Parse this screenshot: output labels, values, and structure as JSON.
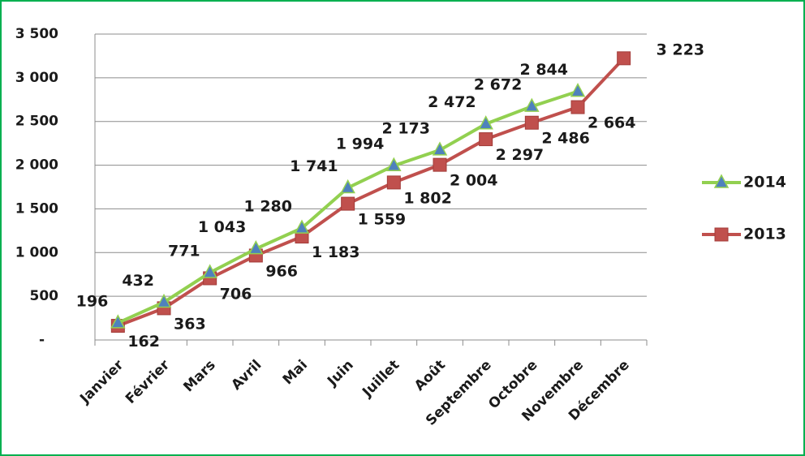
{
  "chart_data": {
    "type": "line",
    "categories": [
      "Janvier",
      "Février",
      "Mars",
      "Avril",
      "Mai",
      "Juin",
      "Juillet",
      "Août",
      "Septembre",
      "Octobre",
      "Novembre",
      "Décembre"
    ],
    "series": [
      {
        "name": "2014",
        "color": "#92d050",
        "marker_color": "#4f81bd",
        "marker": "triangle",
        "values": [
          196,
          432,
          771,
          1043,
          1280,
          1741,
          1994,
          2173,
          2472,
          2672,
          2844,
          null
        ],
        "value_labels": [
          "196",
          "432",
          "771",
          "1 043",
          "1 280",
          "1 741",
          "1 994",
          "2 173",
          "2 472",
          "2 672",
          "2 844",
          null
        ]
      },
      {
        "name": "2013",
        "color": "#c0504d",
        "marker_color": "#c0504d",
        "marker": "square",
        "values": [
          162,
          363,
          706,
          966,
          1183,
          1559,
          1802,
          2004,
          2297,
          2486,
          2664,
          3223
        ],
        "value_labels": [
          "162",
          "363",
          "706",
          "966",
          "1 183",
          "1 559",
          "1 802",
          "2 004",
          "2 297",
          "2 486",
          "2 664",
          "3 223"
        ]
      }
    ],
    "ylim": [
      0,
      3500
    ],
    "yticks": [
      {
        "value": 0,
        "label": "-"
      },
      500,
      {
        "value": 1000,
        "label": "1 000"
      },
      {
        "value": 1500,
        "label": "1 500"
      },
      {
        "value": 2000,
        "label": "2 000"
      },
      {
        "value": 2500,
        "label": "2 500"
      },
      {
        "value": 3000,
        "label": "3 000"
      },
      {
        "value": 3500,
        "label": "3 500"
      }
    ],
    "grid": true,
    "legend": "right"
  }
}
